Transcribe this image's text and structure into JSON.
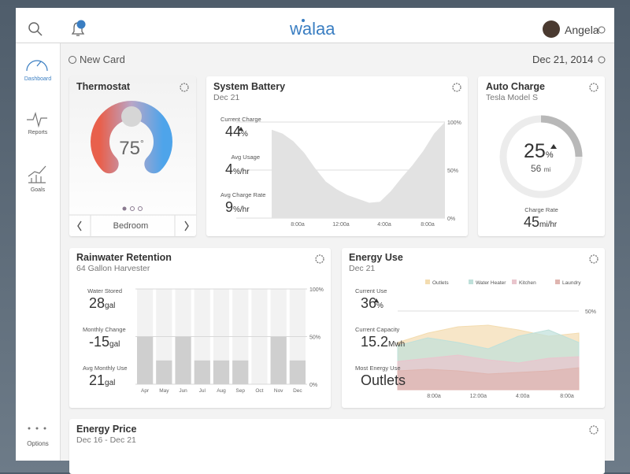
{
  "header": {
    "brand": "walaa",
    "notifications": 1,
    "user": "Angela"
  },
  "sidebar": {
    "items": [
      "Dashboard",
      "Reports",
      "Goals"
    ],
    "options": "Options"
  },
  "toolbar": {
    "new_card": "New Card",
    "date": "Dec 21, 2014"
  },
  "thermostat": {
    "title": "Thermostat",
    "temperature": 75,
    "degree": "°",
    "room": "Bedroom"
  },
  "system_battery": {
    "title": "System Battery",
    "date": "Dec 21",
    "stats": [
      {
        "label": "Current Charge",
        "value": 44,
        "unit": "%"
      },
      {
        "label": "Avg Usage",
        "value": 4,
        "unit": "%/hr"
      },
      {
        "label": "Avg Charge Rate",
        "value": 9,
        "unit": "%/hr"
      }
    ],
    "chart": {
      "type": "area",
      "color": "#e2e2e2",
      "xticks": [
        "8:00a",
        "12:00a",
        "4:00a",
        "8:00a"
      ],
      "values": [
        92,
        88,
        80,
        68,
        52,
        38,
        30,
        24,
        20,
        16,
        17,
        28,
        42,
        55,
        70,
        88,
        100
      ],
      "ylim": [
        0,
        100
      ],
      "yticks": [
        {
          "value": 0,
          "label": "0%"
        },
        {
          "value": 50,
          "label": "50%"
        },
        {
          "value": 100,
          "label": "100%"
        }
      ]
    }
  },
  "auto_charge": {
    "title": "Auto Charge",
    "subtitle": "Tesla Model S",
    "charge": 25,
    "charge_unit": "%",
    "range": 56,
    "range_unit": "mi",
    "rate_label": "Charge Rate",
    "rate": 45,
    "rate_unit": "mi/hr"
  },
  "rainwater": {
    "title": "Rainwater Retention",
    "subtitle": "64 Gallon Harvester",
    "stats": [
      {
        "label": "Water Stored",
        "value": 28,
        "unit": "gal"
      },
      {
        "label": "Monthly Change",
        "value": -15,
        "unit": "gal"
      },
      {
        "label": "Avg Monthly Use",
        "value": 21,
        "unit": "gal"
      }
    ],
    "chart": {
      "type": "bar",
      "color": "#cfcfcf",
      "categories": [
        "Apr",
        "May",
        "Jun",
        "Jul",
        "Aug",
        "Sep",
        "Oct",
        "Nov",
        "Dec"
      ],
      "values": [
        50,
        25,
        50,
        25,
        25,
        25,
        0,
        50,
        25
      ],
      "ylim": [
        0,
        100
      ],
      "yticks": [
        {
          "value": 0,
          "label": "0%"
        },
        {
          "value": 50,
          "label": "50%"
        },
        {
          "value": 100,
          "label": "100%"
        }
      ]
    }
  },
  "energy_use": {
    "title": "Energy Use",
    "date": "Dec 21",
    "stats": [
      {
        "label": "Current Use",
        "value": 36,
        "unit": "%"
      },
      {
        "label": "Current Capacity",
        "value": 15.2,
        "unit": "Mwh"
      },
      {
        "label": "Most Energy Use",
        "value": "Outlets"
      }
    ],
    "chart": {
      "type": "area",
      "xticks": [
        "8:00a",
        "12:00a",
        "4:00a",
        "8:00a"
      ],
      "ylim": [
        0,
        60
      ],
      "yticks": [
        {
          "value": 50,
          "label": "50%"
        }
      ],
      "series": [
        {
          "name": "Outlets",
          "color": "#f3dcb0",
          "values": [
            30,
            36,
            40,
            41,
            38,
            34,
            36
          ]
        },
        {
          "name": "Water Heater",
          "color": "#bfe0da",
          "values": [
            28,
            33,
            30,
            26,
            34,
            38,
            30
          ]
        },
        {
          "name": "Kitchen",
          "color": "#e9c5cd",
          "values": [
            18,
            20,
            22,
            19,
            17,
            20,
            21
          ]
        },
        {
          "name": "Laundry",
          "color": "#dfb5b0",
          "values": [
            12,
            13,
            12,
            10,
            11,
            12,
            14
          ]
        }
      ]
    }
  },
  "energy_price": {
    "title": "Energy Price",
    "date": "Dec 16 - Dec 21"
  }
}
